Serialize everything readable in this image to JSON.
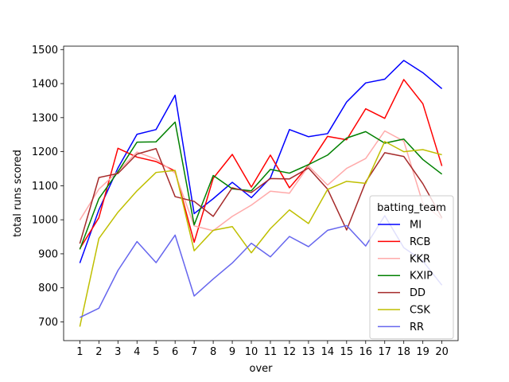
{
  "chart_data": {
    "type": "line",
    "xlabel": "over",
    "ylabel": "total runs scored",
    "x": [
      1,
      2,
      3,
      4,
      5,
      6,
      7,
      8,
      9,
      10,
      11,
      12,
      13,
      14,
      15,
      16,
      17,
      18,
      19,
      20
    ],
    "xlim": [
      0.15,
      20.85
    ],
    "ylim": [
      645,
      1510
    ],
    "yticks": [
      700,
      800,
      900,
      1000,
      1100,
      1200,
      1300,
      1400,
      1500
    ],
    "grid": false,
    "legend": {
      "title": "batting_team",
      "placement": "center-right"
    },
    "series": [
      {
        "name": "MI",
        "color": "#0000ff",
        "values": [
          873,
          1029,
          1152,
          1251,
          1265,
          1366,
          1018,
          1062,
          1110,
          1065,
          1123,
          1265,
          1244,
          1253,
          1346,
          1402,
          1413,
          1468,
          1432,
          1385
        ]
      },
      {
        "name": "RCB",
        "color": "#ff0000",
        "values": [
          915,
          1006,
          1210,
          1184,
          1171,
          1143,
          934,
          1122,
          1192,
          1096,
          1190,
          1094,
          1160,
          1245,
          1235,
          1326,
          1298,
          1412,
          1341,
          1158
        ]
      },
      {
        "name": "KKR",
        "color": "#ffaaaa",
        "values": [
          999,
          1090,
          1142,
          1199,
          1178,
          1137,
          982,
          968,
          1010,
          1043,
          1084,
          1078,
          1158,
          1102,
          1151,
          1180,
          1261,
          1231,
          1048,
          1002
        ]
      },
      {
        "name": "KXIP",
        "color": "#008000",
        "values": [
          913,
          1062,
          1141,
          1228,
          1229,
          1287,
          985,
          1130,
          1091,
          1085,
          1148,
          1137,
          1162,
          1190,
          1240,
          1259,
          1225,
          1237,
          1177,
          1134
        ]
      },
      {
        "name": "DD",
        "color": "#a52a2a",
        "values": [
          930,
          1124,
          1136,
          1193,
          1209,
          1068,
          1054,
          1010,
          1094,
          1080,
          1121,
          1120,
          1152,
          1090,
          970,
          1111,
          1197,
          1186,
          1106,
          1006
        ]
      },
      {
        "name": "CSK",
        "color": "#bfbf00",
        "values": [
          686,
          945,
          1022,
          1085,
          1139,
          1145,
          909,
          969,
          980,
          903,
          974,
          1029,
          989,
          1089,
          1113,
          1107,
          1230,
          1200,
          1206,
          1191
        ]
      },
      {
        "name": "RR",
        "color": "#6666ee",
        "values": [
          713,
          740,
          851,
          936,
          874,
          955,
          776,
          826,
          873,
          931,
          891,
          951,
          921,
          969,
          983,
          923,
          1012,
          918,
          879,
          808
        ]
      }
    ]
  }
}
